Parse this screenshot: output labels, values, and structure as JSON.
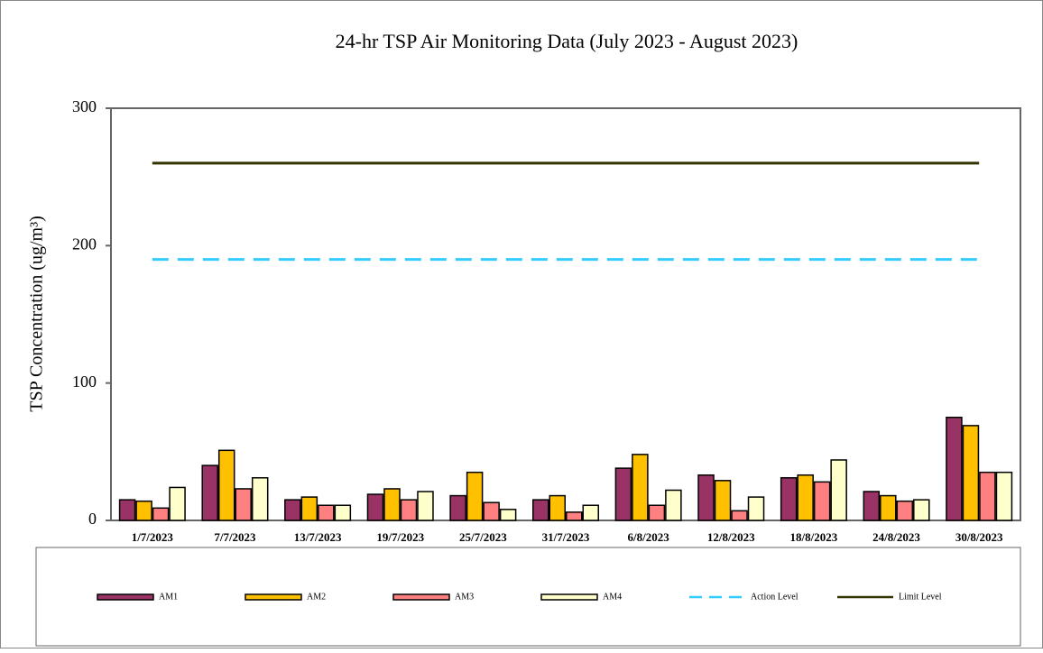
{
  "chart_data": {
    "type": "bar",
    "title": "24-hr TSP Air Monitoring Data (July 2023 - August 2023)",
    "y_label": "TSP Concentration (ug/m³)",
    "categories": [
      "1/7/2023",
      "7/7/2023",
      "13/7/2023",
      "19/7/2023",
      "25/7/2023",
      "31/7/2023",
      "6/8/2023",
      "12/8/2023",
      "18/8/2023",
      "24/8/2023",
      "30/8/2023"
    ],
    "series": [
      {
        "name": "AM1",
        "color": "#993366",
        "values": [
          15,
          40,
          15,
          19,
          18,
          15,
          38,
          33,
          31,
          21,
          75
        ]
      },
      {
        "name": "AM2",
        "color": "#ffc000",
        "values": [
          14,
          51,
          17,
          23,
          35,
          18,
          48,
          29,
          33,
          18,
          69
        ]
      },
      {
        "name": "AM3",
        "color": "#ff8080",
        "values": [
          9,
          23,
          11,
          15,
          13,
          6,
          11,
          7,
          28,
          14,
          35
        ]
      },
      {
        "name": "AM4",
        "color": "#ffffcc",
        "values": [
          24,
          31,
          11,
          21,
          8,
          11,
          22,
          17,
          44,
          15,
          35
        ]
      },
      {
        "name": "Action Level",
        "type": "line",
        "dashed": true,
        "color": "#33ccff",
        "values": [
          190,
          190,
          190,
          190,
          190,
          190,
          190,
          190,
          190,
          190,
          190
        ]
      },
      {
        "name": "Limit Level",
        "type": "line",
        "dashed": false,
        "color": "#333300",
        "values": [
          260,
          260,
          260,
          260,
          260,
          260,
          260,
          260,
          260,
          260,
          260
        ]
      }
    ],
    "ylim": [
      0,
      300
    ],
    "yticks": [
      0,
      100,
      200,
      300
    ],
    "grid": false,
    "legend": "bottom"
  }
}
